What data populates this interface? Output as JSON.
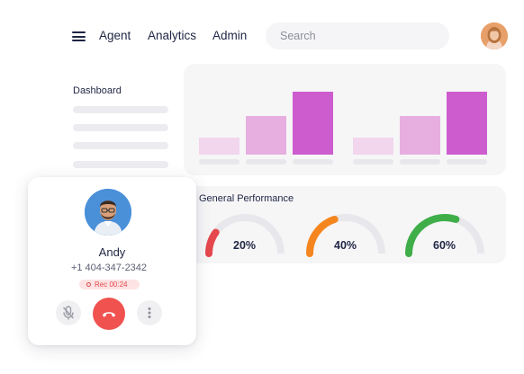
{
  "header": {
    "menu_icon": "hamburger-menu-icon",
    "nav": [
      "Agent",
      "Analytics",
      "Admin"
    ],
    "search_placeholder": "Search",
    "avatar_icon": "user-avatar"
  },
  "sidebar": {
    "title": "Dashboard"
  },
  "chart_data": {
    "type": "bar",
    "title": "",
    "categories": [
      "",
      "",
      "",
      "",
      "",
      ""
    ],
    "series": [
      {
        "values": [
          19,
          43,
          70,
          19,
          43,
          70
        ]
      }
    ],
    "ylim": [
      0,
      75
    ],
    "colors": [
      "#f1d6ee",
      "#e7afe0",
      "#cd5dcf",
      "#f1d6ee",
      "#e7afe0",
      "#cd5dcf"
    ],
    "grid": false
  },
  "performance": {
    "title": "General Performance",
    "gauges": [
      {
        "value": 20,
        "label": "20%",
        "color": "#e5484d"
      },
      {
        "value": 40,
        "label": "40%",
        "color": "#f5861f"
      },
      {
        "value": 60,
        "label": "60%",
        "color": "#3fae49"
      }
    ],
    "track_color": "#e8e8ec"
  },
  "call": {
    "name": "Andy",
    "phone": "+1 404-347-2342",
    "recording": "Rec 00:24",
    "mute_icon": "mic-off-icon",
    "hangup_icon": "phone-hangup-icon",
    "more_icon": "more-vertical-icon",
    "hangup_color": "#f0524f"
  }
}
